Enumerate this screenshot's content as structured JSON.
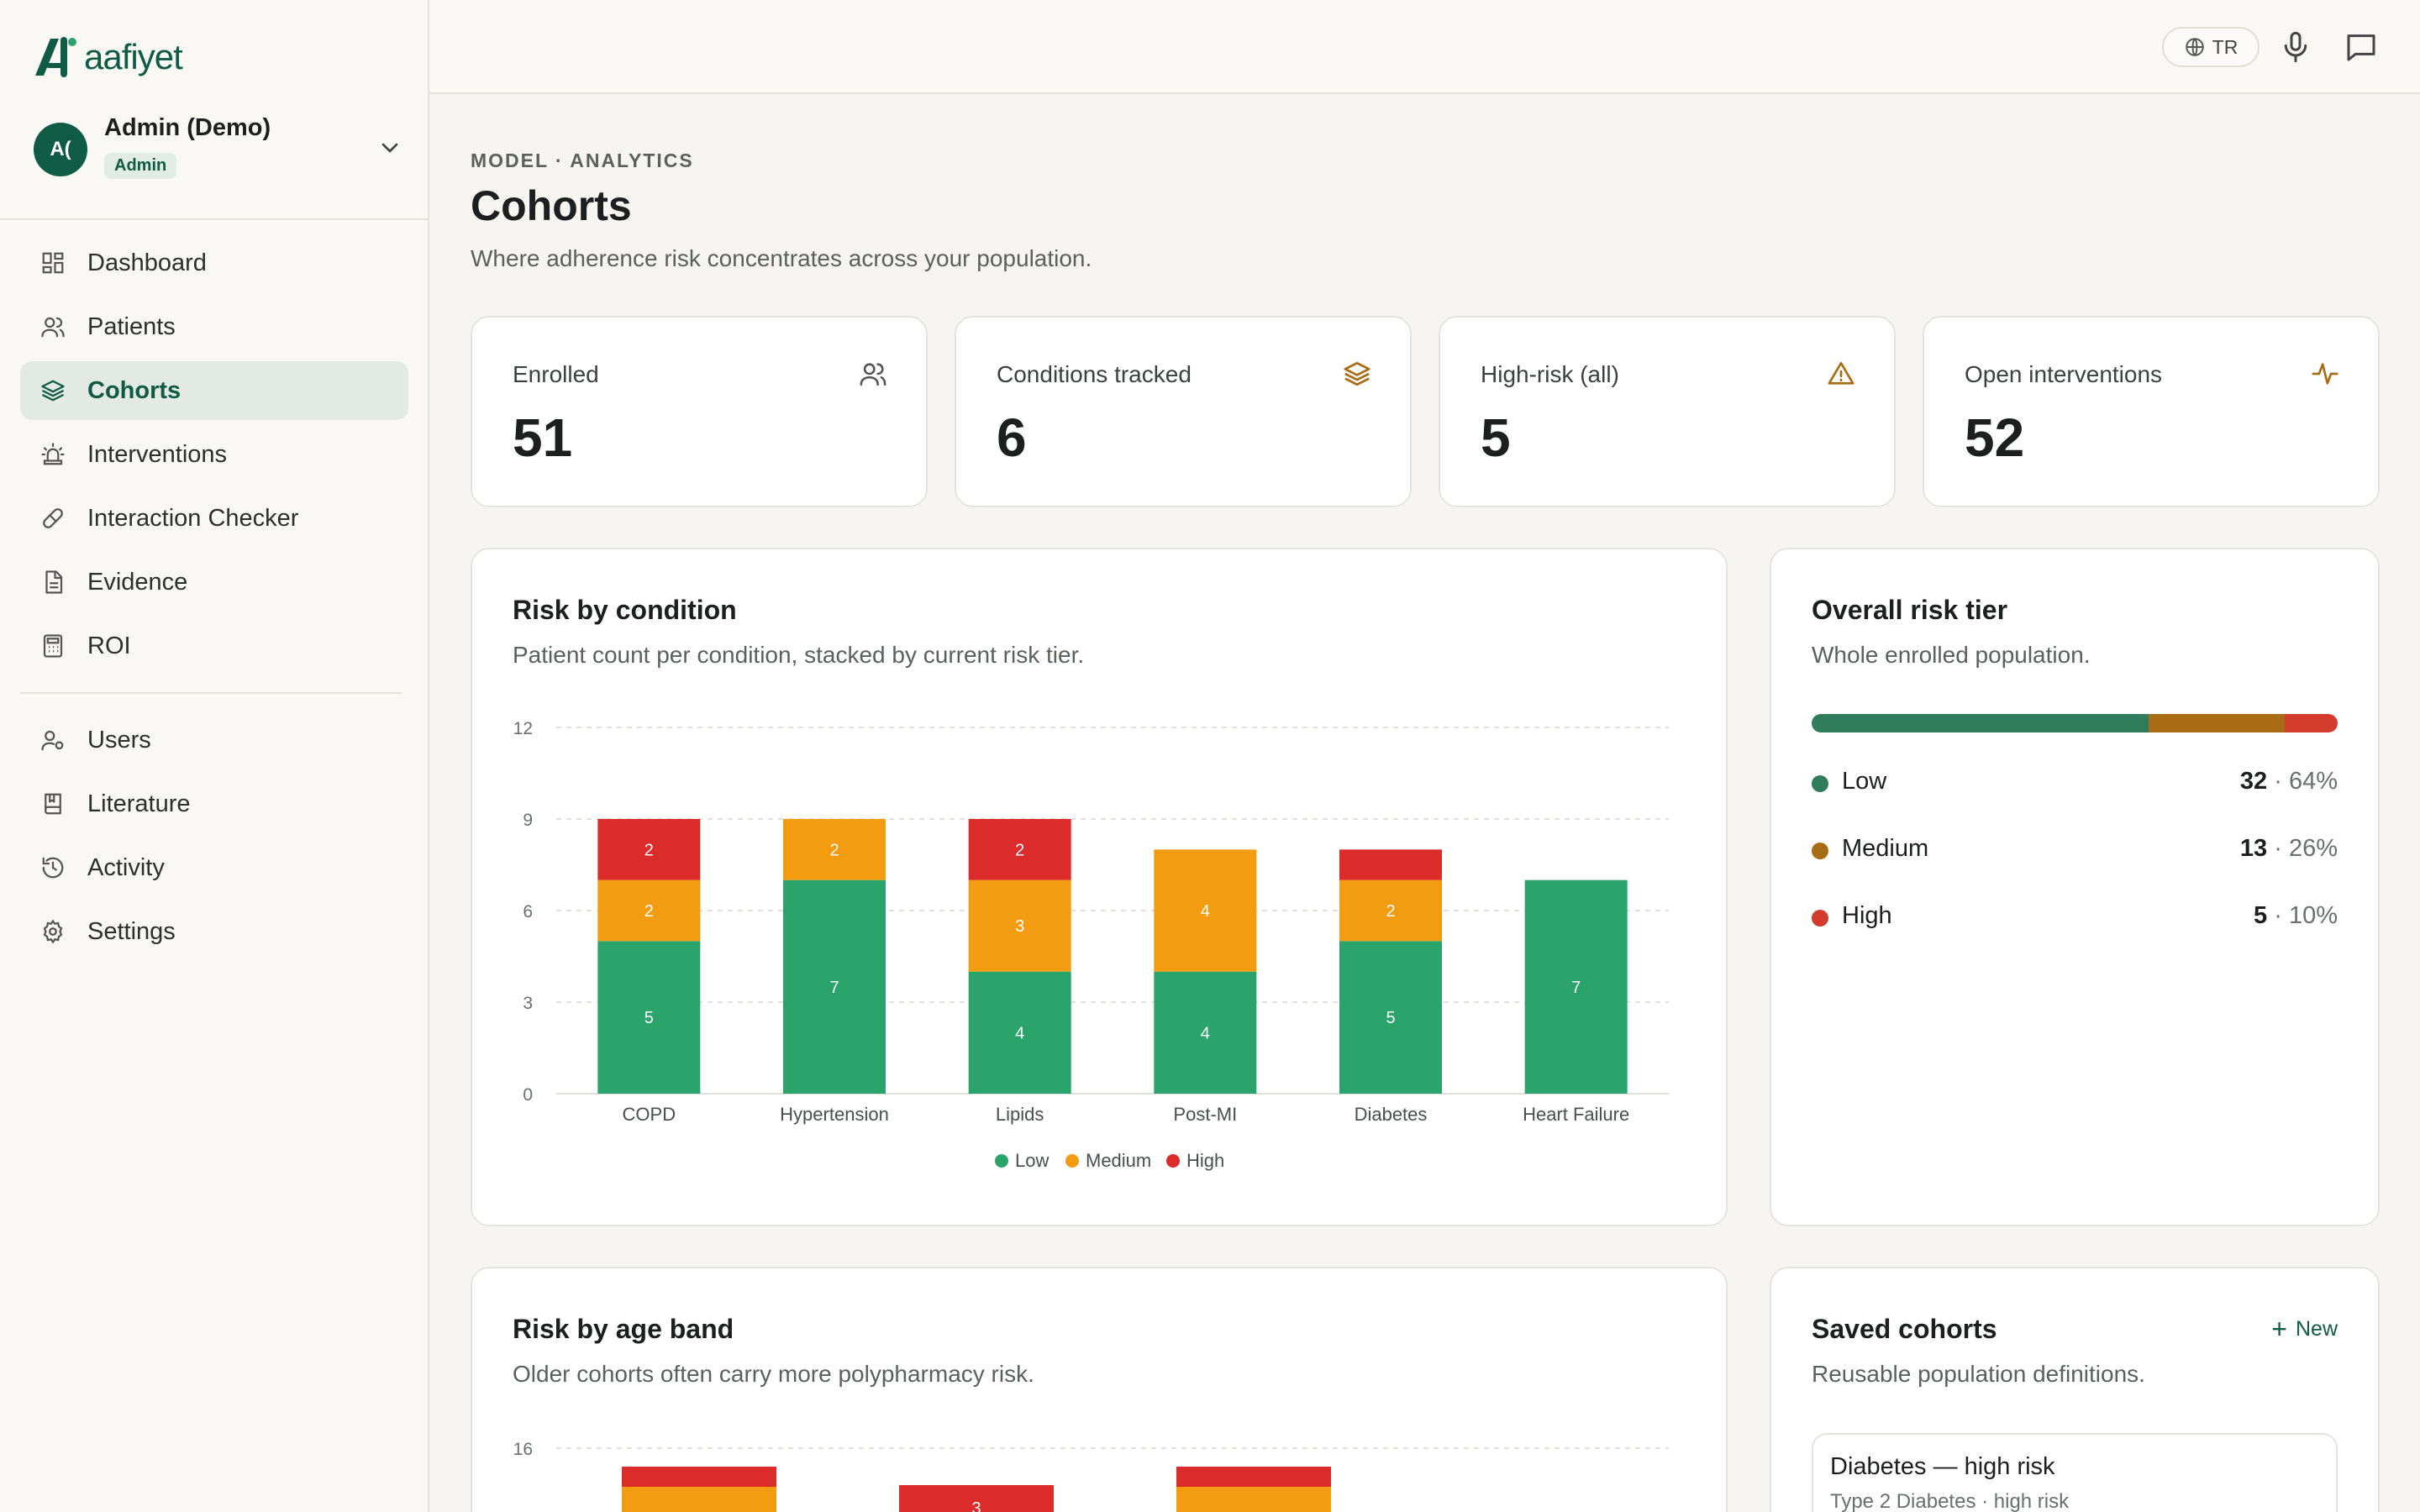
{
  "brand": {
    "name": "aafiyet",
    "color": "#0f5b43"
  },
  "user": {
    "initials": "A(",
    "name": "Admin (Demo)",
    "role": "Admin"
  },
  "nav": {
    "primary": [
      {
        "label": "Dashboard",
        "icon": "dashboard-grid-icon"
      },
      {
        "label": "Patients",
        "icon": "users-icon"
      },
      {
        "label": "Cohorts",
        "icon": "layers-icon",
        "active": true
      },
      {
        "label": "Interventions",
        "icon": "siren-icon"
      },
      {
        "label": "Interaction Checker",
        "icon": "pill-icon"
      },
      {
        "label": "Evidence",
        "icon": "document-icon"
      },
      {
        "label": "ROI",
        "icon": "calculator-icon"
      }
    ],
    "secondary": [
      {
        "label": "Users",
        "icon": "user-cog-icon"
      },
      {
        "label": "Literature",
        "icon": "book-icon"
      },
      {
        "label": "Activity",
        "icon": "history-icon"
      },
      {
        "label": "Settings",
        "icon": "gear-icon"
      }
    ]
  },
  "topbar": {
    "language": "TR"
  },
  "header": {
    "eyebrow": "MODEL · ANALYTICS",
    "title": "Cohorts",
    "subtitle": "Where adherence risk concentrates across your population."
  },
  "stats": [
    {
      "label": "Enrolled",
      "value": "51",
      "icon": "users-icon"
    },
    {
      "label": "Conditions tracked",
      "value": "6",
      "icon": "layers-icon"
    },
    {
      "label": "High-risk (all)",
      "value": "5",
      "icon": "warning-triangle-icon"
    },
    {
      "label": "Open interventions",
      "value": "52",
      "icon": "activity-pulse-icon"
    }
  ],
  "risk_by_condition": {
    "title": "Risk by condition",
    "subtitle": "Patient count per condition, stacked by current risk tier."
  },
  "overall_tier": {
    "title": "Overall risk tier",
    "subtitle": "Whole enrolled population.",
    "tiers": [
      {
        "name": "Low",
        "count": "32",
        "pct": "64%",
        "fraction": 0.64,
        "color": "#2f7d5b"
      },
      {
        "name": "Medium",
        "count": "13",
        "pct": "26%",
        "fraction": 0.26,
        "color": "#a86d14"
      },
      {
        "name": "High",
        "count": "5",
        "pct": "10%",
        "fraction": 0.1,
        "color": "#d33b2c"
      }
    ]
  },
  "risk_by_age": {
    "title": "Risk by age band",
    "subtitle": "Older cohorts often carry more polypharmacy risk."
  },
  "saved_cohorts": {
    "title": "Saved cohorts",
    "subtitle": "Reusable population definitions.",
    "new_label": "New",
    "items": [
      {
        "name": "Diabetes — high risk",
        "desc": "Type 2 Diabetes · high risk"
      }
    ]
  },
  "chart_data": [
    {
      "type": "bar",
      "stacked": true,
      "categories": [
        "COPD",
        "Hypertension",
        "Lipids",
        "Post-MI",
        "Diabetes",
        "Heart Failure"
      ],
      "series": [
        {
          "name": "Low",
          "color": "#2aa46b",
          "values": [
            5,
            7,
            4,
            4,
            5,
            7
          ]
        },
        {
          "name": "Medium",
          "color": "#f39c12",
          "values": [
            2,
            2,
            3,
            4,
            2,
            0
          ]
        },
        {
          "name": "High",
          "color": "#dc2b2b",
          "values": [
            2,
            0,
            2,
            0,
            1,
            0
          ]
        }
      ],
      "yticks": [
        0,
        3,
        6,
        9,
        12
      ],
      "ylim": [
        0,
        12
      ],
      "grid": true,
      "legend": "bottom"
    },
    {
      "type": "bar",
      "stacked": true,
      "series": [
        {
          "name": "Medium",
          "color": "#f39c12"
        },
        {
          "name": "High",
          "color": "#dc2b2b"
        }
      ],
      "visible_value_labels": [
        "3"
      ],
      "yticks": [
        16
      ],
      "grid": true
    }
  ]
}
